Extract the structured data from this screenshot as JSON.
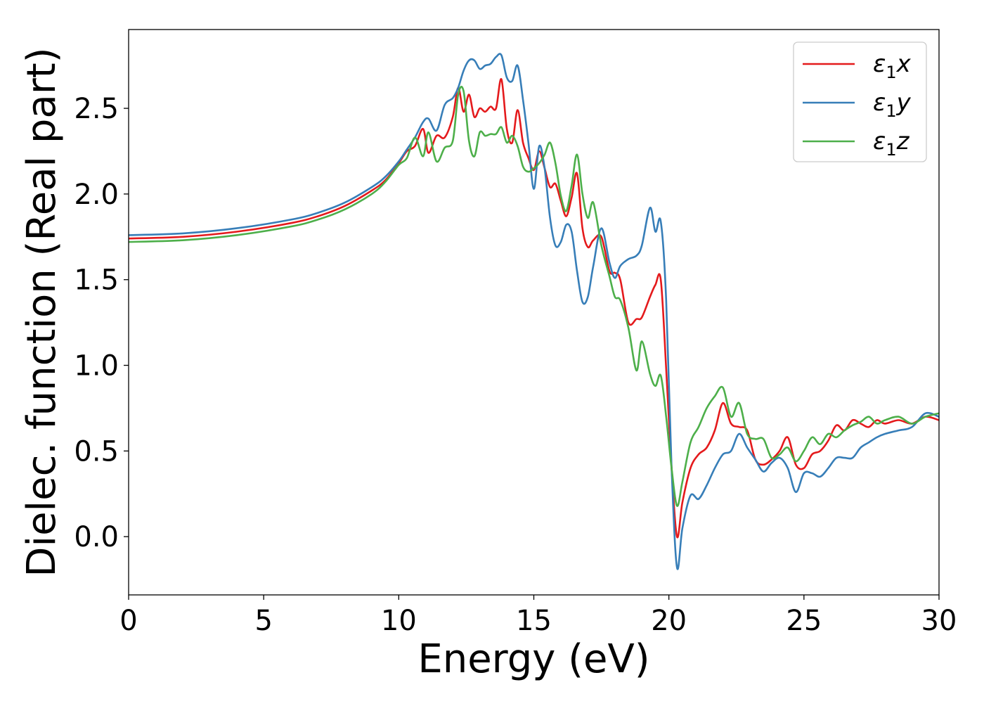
{
  "chart_data": {
    "type": "line",
    "title": "",
    "xlabel": "Energy (eV)",
    "ylabel": "Dielec. function (Real part)",
    "xlim": [
      0,
      30
    ],
    "ylim": [
      -0.34,
      2.96
    ],
    "xticks": [
      0,
      5,
      10,
      15,
      20,
      25,
      30
    ],
    "xtick_labels": [
      "0",
      "5",
      "10",
      "15",
      "20",
      "25",
      "30"
    ],
    "yticks": [
      0.0,
      0.5,
      1.0,
      1.5,
      2.0,
      2.5
    ],
    "ytick_labels": [
      "0.0",
      "0.5",
      "1.0",
      "1.5",
      "2.0",
      "2.5"
    ],
    "grid": false,
    "legend": {
      "position": "top-right",
      "entries": [
        {
          "sym": "ε",
          "sub": "1",
          "axis": "x"
        },
        {
          "sym": "ε",
          "sub": "1",
          "axis": "y"
        },
        {
          "sym": "ε",
          "sub": "1",
          "axis": "z"
        }
      ]
    },
    "series": [
      {
        "name": "ε1x",
        "color": "#e41a1c",
        "x": [
          0,
          2,
          4,
          6,
          7,
          8,
          9,
          9.5,
          10,
          10.3,
          10.6,
          10.9,
          11.1,
          11.4,
          11.7,
          12.0,
          12.2,
          12.4,
          12.6,
          12.8,
          13.0,
          13.2,
          13.4,
          13.6,
          13.8,
          14.0,
          14.2,
          14.4,
          14.6,
          14.8,
          15.0,
          15.2,
          15.4,
          15.6,
          15.8,
          16.0,
          16.2,
          16.4,
          16.6,
          16.8,
          17.0,
          17.2,
          17.5,
          17.8,
          18.0,
          18.2,
          18.5,
          18.8,
          19.0,
          19.3,
          19.5,
          19.7,
          19.9,
          20.1,
          20.3,
          20.5,
          20.8,
          21.1,
          21.4,
          21.7,
          22.0,
          22.3,
          22.6,
          22.9,
          23.2,
          23.5,
          23.8,
          24.1,
          24.4,
          24.7,
          25.0,
          25.3,
          25.6,
          25.9,
          26.2,
          26.5,
          26.8,
          27.1,
          27.4,
          27.7,
          28.0,
          28.5,
          29.0,
          29.5,
          30.0
        ],
        "y": [
          1.74,
          1.75,
          1.78,
          1.83,
          1.87,
          1.93,
          2.02,
          2.08,
          2.18,
          2.25,
          2.28,
          2.38,
          2.24,
          2.34,
          2.33,
          2.45,
          2.62,
          2.48,
          2.58,
          2.45,
          2.5,
          2.48,
          2.51,
          2.5,
          2.67,
          2.38,
          2.3,
          2.49,
          2.3,
          2.21,
          2.14,
          2.25,
          2.15,
          2.04,
          2.06,
          1.96,
          1.87,
          1.98,
          2.12,
          1.8,
          1.69,
          1.73,
          1.75,
          1.55,
          1.54,
          1.5,
          1.25,
          1.27,
          1.28,
          1.4,
          1.47,
          1.5,
          0.98,
          0.4,
          0.0,
          0.2,
          0.4,
          0.48,
          0.52,
          0.62,
          0.78,
          0.66,
          0.64,
          0.62,
          0.45,
          0.42,
          0.45,
          0.5,
          0.58,
          0.42,
          0.4,
          0.48,
          0.5,
          0.56,
          0.65,
          0.62,
          0.68,
          0.66,
          0.64,
          0.68,
          0.66,
          0.68,
          0.66,
          0.7,
          0.68
        ]
      },
      {
        "name": "ε1y",
        "color": "#377eb8",
        "x": [
          0,
          2,
          4,
          6,
          7,
          8,
          9,
          9.5,
          10,
          10.3,
          10.6,
          10.9,
          11.1,
          11.4,
          11.7,
          12.0,
          12.2,
          12.4,
          12.6,
          12.8,
          13.0,
          13.2,
          13.4,
          13.6,
          13.8,
          14.0,
          14.2,
          14.4,
          14.6,
          14.8,
          15.0,
          15.2,
          15.4,
          15.6,
          15.8,
          16.0,
          16.2,
          16.4,
          16.6,
          16.8,
          17.0,
          17.2,
          17.5,
          17.8,
          18.0,
          18.2,
          18.5,
          18.8,
          19.0,
          19.3,
          19.5,
          19.7,
          19.9,
          20.1,
          20.3,
          20.5,
          20.8,
          21.1,
          21.4,
          21.7,
          22.0,
          22.3,
          22.6,
          22.9,
          23.2,
          23.5,
          23.8,
          24.1,
          24.4,
          24.7,
          25.0,
          25.3,
          25.6,
          25.9,
          26.2,
          26.5,
          26.8,
          27.1,
          27.4,
          27.7,
          28.0,
          28.5,
          29.0,
          29.5,
          30.0
        ],
        "y": [
          1.76,
          1.77,
          1.8,
          1.85,
          1.89,
          1.95,
          2.04,
          2.1,
          2.19,
          2.26,
          2.33,
          2.42,
          2.44,
          2.37,
          2.52,
          2.56,
          2.62,
          2.72,
          2.78,
          2.78,
          2.73,
          2.75,
          2.76,
          2.8,
          2.81,
          2.68,
          2.66,
          2.75,
          2.55,
          2.3,
          2.03,
          2.28,
          2.15,
          1.86,
          1.7,
          1.72,
          1.82,
          1.78,
          1.55,
          1.37,
          1.4,
          1.58,
          1.8,
          1.6,
          1.51,
          1.58,
          1.62,
          1.64,
          1.7,
          1.92,
          1.78,
          1.84,
          1.38,
          0.4,
          -0.18,
          0.05,
          0.24,
          0.22,
          0.3,
          0.4,
          0.48,
          0.5,
          0.6,
          0.52,
          0.45,
          0.38,
          0.43,
          0.46,
          0.4,
          0.26,
          0.37,
          0.37,
          0.35,
          0.4,
          0.46,
          0.46,
          0.46,
          0.52,
          0.55,
          0.58,
          0.6,
          0.62,
          0.64,
          0.72,
          0.7
        ]
      },
      {
        "name": "ε1z",
        "color": "#4daf4a",
        "x": [
          0,
          2,
          4,
          6,
          7,
          8,
          9,
          9.5,
          10,
          10.3,
          10.6,
          10.9,
          11.1,
          11.4,
          11.7,
          12.0,
          12.2,
          12.4,
          12.6,
          12.8,
          13.0,
          13.2,
          13.4,
          13.6,
          13.8,
          14.0,
          14.2,
          14.4,
          14.6,
          14.8,
          15.0,
          15.2,
          15.4,
          15.6,
          15.8,
          16.0,
          16.2,
          16.4,
          16.6,
          16.8,
          17.0,
          17.2,
          17.5,
          17.8,
          18.0,
          18.2,
          18.5,
          18.8,
          19.0,
          19.3,
          19.5,
          19.7,
          19.9,
          20.1,
          20.3,
          20.5,
          20.8,
          21.1,
          21.4,
          21.7,
          22.0,
          22.3,
          22.6,
          22.9,
          23.2,
          23.5,
          23.8,
          24.1,
          24.4,
          24.7,
          25.0,
          25.3,
          25.6,
          25.9,
          26.2,
          26.5,
          26.8,
          27.1,
          27.4,
          27.7,
          28.0,
          28.5,
          29.0,
          29.5,
          30.0
        ],
        "y": [
          1.72,
          1.73,
          1.76,
          1.81,
          1.85,
          1.91,
          2.0,
          2.07,
          2.17,
          2.21,
          2.33,
          2.22,
          2.36,
          2.19,
          2.27,
          2.31,
          2.58,
          2.6,
          2.31,
          2.22,
          2.36,
          2.34,
          2.35,
          2.35,
          2.39,
          2.3,
          2.34,
          2.28,
          2.16,
          2.13,
          2.15,
          2.18,
          2.23,
          2.3,
          2.18,
          1.99,
          1.9,
          2.05,
          2.23,
          2.0,
          1.86,
          1.95,
          1.7,
          1.52,
          1.4,
          1.38,
          1.22,
          0.97,
          1.14,
          0.95,
          0.88,
          0.94,
          0.7,
          0.4,
          0.18,
          0.32,
          0.55,
          0.64,
          0.75,
          0.82,
          0.87,
          0.7,
          0.78,
          0.6,
          0.57,
          0.57,
          0.46,
          0.48,
          0.52,
          0.44,
          0.5,
          0.58,
          0.54,
          0.6,
          0.58,
          0.62,
          0.65,
          0.67,
          0.7,
          0.66,
          0.68,
          0.7,
          0.66,
          0.7,
          0.72
        ]
      }
    ]
  }
}
